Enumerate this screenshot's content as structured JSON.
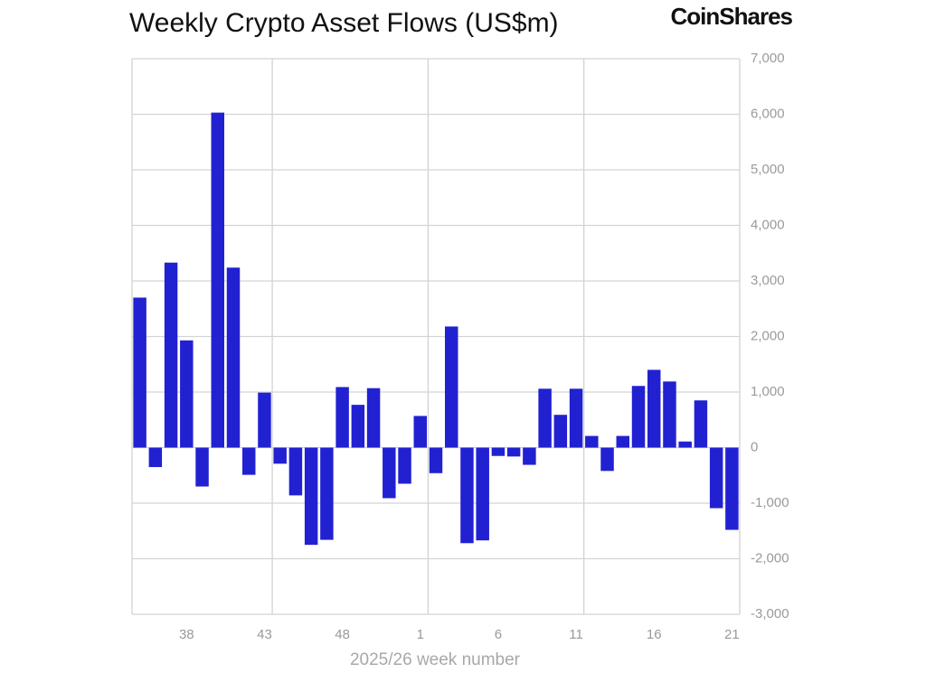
{
  "chart_data": {
    "type": "bar",
    "title": "Weekly Crypto Asset Flows (US$m)",
    "logo": "CoinShares",
    "xlabel": "2025/26 week number",
    "categories": [
      null,
      null,
      null,
      "38",
      null,
      null,
      null,
      null,
      "43",
      null,
      null,
      null,
      null,
      "48",
      null,
      null,
      null,
      null,
      "1",
      null,
      null,
      null,
      null,
      "6",
      null,
      null,
      null,
      null,
      "11",
      null,
      null,
      null,
      null,
      "16",
      null,
      null,
      null,
      null,
      "21"
    ],
    "values": [
      2700,
      -350,
      3330,
      1930,
      -700,
      6030,
      3240,
      -490,
      990,
      -290,
      -860,
      -1750,
      -1660,
      1090,
      770,
      1070,
      -910,
      -650,
      570,
      -460,
      2180,
      -1720,
      -1670,
      -150,
      -160,
      -310,
      1060,
      590,
      1060,
      210,
      -420,
      210,
      1110,
      1400,
      1190,
      110,
      850,
      -1090,
      -1480
    ],
    "color": "#2121d2",
    "ylim": [
      -3000,
      7000
    ],
    "yticks": [
      {
        "value": -3000,
        "label": "-3,000"
      },
      {
        "value": -2000,
        "label": "-2,000"
      },
      {
        "value": -1000,
        "label": "-1,000"
      },
      0,
      {
        "value": 1000,
        "label": "1,000"
      },
      {
        "value": 2000,
        "label": "2,000"
      },
      {
        "value": 3000,
        "label": "3,000"
      },
      {
        "value": 4000,
        "label": "4,000"
      },
      {
        "value": 5000,
        "label": "5,000"
      },
      {
        "value": 6000,
        "label": "6,000"
      },
      {
        "value": 7000,
        "label": "7,000"
      }
    ],
    "grid": true
  }
}
